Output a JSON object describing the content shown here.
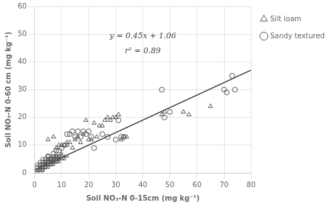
{
  "chart_data": {
    "type": "scatter",
    "xlabel": "Soil NO₃-N 0-15cm (mg kg⁻¹)",
    "ylabel": "Soil NO₃-N 0-60 cm (mg kg⁻¹)",
    "xlim": [
      0,
      80
    ],
    "ylim": [
      0,
      60
    ],
    "xticks": [
      0,
      10,
      20,
      30,
      40,
      50,
      60,
      70,
      80
    ],
    "yticks": [
      0,
      10,
      20,
      30,
      40,
      50,
      60
    ],
    "grid": true,
    "legend": "right",
    "annotations": [
      "y = 0.45x + 1.06",
      "r² = 0.89"
    ],
    "series": [
      {
        "type": "scatter",
        "marker": "triangle",
        "color": "#555555",
        "x": [
          1,
          2,
          3,
          3,
          4,
          4,
          5,
          5,
          6,
          6,
          7,
          7,
          8,
          8,
          9,
          9,
          10,
          10,
          11,
          11,
          12,
          3,
          4,
          5,
          6,
          7,
          8,
          9,
          10,
          3,
          4,
          5,
          6,
          7,
          8
        ],
        "values": [
          1,
          1,
          1,
          2,
          2,
          3,
          2,
          3,
          3,
          4,
          3,
          4,
          4,
          5,
          4,
          5,
          5,
          6,
          5,
          6,
          6,
          3,
          4,
          4,
          5,
          5,
          6,
          6,
          7,
          2,
          3,
          3,
          4,
          4,
          5
        ]
      },
      {
        "type": "scatter",
        "marker": "circle",
        "color": "#555555",
        "x": [
          1,
          1,
          2,
          2,
          2,
          3,
          3,
          3,
          4,
          4,
          4,
          5,
          5,
          5,
          6,
          6,
          6,
          7,
          7,
          7,
          8,
          8,
          8,
          9,
          9,
          1,
          2,
          3,
          4,
          5,
          6,
          7,
          1,
          2,
          3,
          4,
          5,
          6,
          7,
          8,
          2,
          3,
          4,
          5
        ],
        "values": [
          0,
          1,
          1,
          2,
          3,
          1,
          2,
          3,
          2,
          3,
          4,
          3,
          4,
          5,
          3,
          4,
          5,
          4,
          5,
          6,
          4,
          5,
          6,
          5,
          6,
          2,
          2,
          3,
          3,
          4,
          4,
          5,
          3,
          3,
          4,
          4,
          5,
          5,
          6,
          6,
          4,
          5,
          5,
          6
        ]
      },
      {
        "name": "Sandy textured",
        "type": "scatter",
        "marker": "circle",
        "color": "#555555",
        "x": [
          5,
          6,
          7,
          8,
          9,
          10,
          11,
          12,
          13,
          14,
          15,
          16,
          17,
          18,
          19,
          20,
          21,
          22,
          25,
          27,
          30,
          31,
          32,
          33,
          47,
          48,
          50,
          70,
          71,
          73,
          74
        ],
        "values": [
          6,
          5,
          7,
          8,
          8,
          9,
          10,
          14,
          14,
          15,
          13,
          15,
          13,
          15,
          14,
          15,
          13,
          9,
          14,
          13,
          12,
          19,
          13,
          13,
          30,
          20,
          22,
          30,
          29,
          35,
          30
        ]
      },
      {
        "name": "Silt loam",
        "type": "scatter",
        "marker": "triangle",
        "color": "#555555",
        "x": [
          5,
          7,
          8,
          9,
          10,
          11,
          12,
          12,
          13,
          14,
          15,
          16,
          17,
          18,
          19,
          20,
          21,
          22,
          23,
          24,
          25,
          26,
          27,
          28,
          29,
          30,
          31,
          32,
          33,
          34,
          47,
          48,
          55,
          57,
          65
        ],
        "values": [
          12,
          13,
          9,
          10,
          10,
          10,
          11,
          10,
          11,
          9,
          12,
          13,
          11,
          14,
          19,
          12,
          12,
          18,
          13,
          17,
          17,
          19,
          20,
          19,
          20,
          20,
          21,
          12,
          13,
          13,
          21,
          22,
          22,
          21,
          24
        ]
      },
      {
        "type": "line",
        "color": "#333333",
        "x": [
          0,
          80
        ],
        "values": [
          1.06,
          37.06
        ]
      }
    ]
  }
}
